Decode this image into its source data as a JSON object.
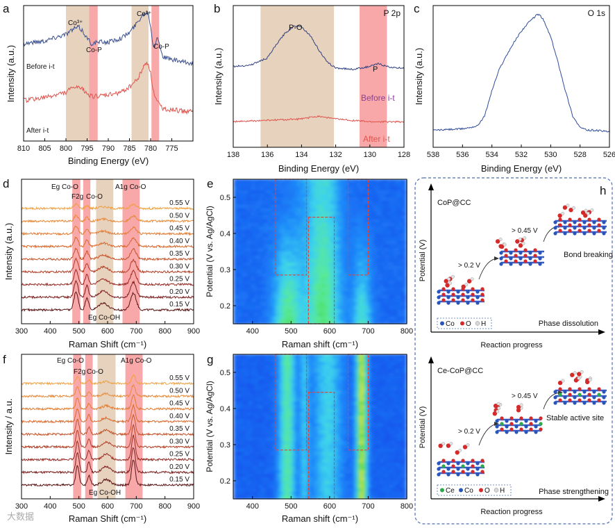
{
  "letters": {
    "a": "a",
    "b": "b",
    "c": "c",
    "d": "d",
    "e": "e",
    "f": "f",
    "g": "g",
    "h": "h"
  },
  "watermark": "大数据",
  "panel_a": {
    "xlabel": "Binding Energy (eV)",
    "ylabel": "Intensity (a.u.)",
    "xlim": [
      810,
      770
    ],
    "xticks": [
      810,
      805,
      800,
      795,
      790,
      785,
      780,
      775
    ],
    "bands": [
      {
        "from": 800,
        "to": 794,
        "color": "#e7d2be"
      },
      {
        "from": 794.5,
        "to": 792.5,
        "color": "#f8a8a8"
      },
      {
        "from": 784.5,
        "to": 780.5,
        "color": "#e7d2be"
      },
      {
        "from": 779.8,
        "to": 778,
        "color": "#f8a8a8"
      }
    ],
    "peak_labels": [
      "Co³⁺",
      "Co-P",
      "Co³⁺",
      "Co-P"
    ],
    "series_labels": [
      "Before i-t",
      "After i-t"
    ],
    "colors": {
      "before": "#3a4f8f",
      "after": "#e0534c"
    }
  },
  "panel_b": {
    "xlabel": "Binding Energy (eV)",
    "ylabel": "Intensity (a.u.)",
    "title": "P 2p",
    "xlim": [
      138,
      128
    ],
    "xticks": [
      138,
      136,
      134,
      132,
      130,
      128
    ],
    "bands": [
      {
        "from": 136.4,
        "to": 132.1,
        "color": "#e7d2be"
      },
      {
        "from": 130.6,
        "to": 129.0,
        "color": "#f8a8a8"
      }
    ],
    "peak_labels": [
      "P-O",
      "P"
    ],
    "series_labels": [
      "Before i-t",
      "After i-t"
    ],
    "series_label_colors": [
      "#8a3f9a",
      "#e0534c"
    ]
  },
  "panel_c": {
    "xlabel": "Binding Energy (eV)",
    "ylabel": "Intensity (a.u.)",
    "title": "O 1s",
    "xlim": [
      538,
      526
    ],
    "xticks": [
      538,
      536,
      534,
      532,
      530,
      528,
      526
    ]
  },
  "panel_d": {
    "xlabel": "Raman Shift (cm⁻¹)",
    "ylabel": "Intensity (a.u.)",
    "xlim": [
      300,
      900
    ],
    "xticks": [
      300,
      400,
      500,
      600,
      700,
      800,
      900
    ],
    "bands": [
      {
        "from": 477,
        "to": 505,
        "color": "#f8a8a8"
      },
      {
        "from": 515,
        "to": 540,
        "color": "#f8a8a8"
      },
      {
        "from": 560,
        "to": 620,
        "color": "#e7d2be"
      },
      {
        "from": 652,
        "to": 712,
        "color": "#f8a8a8"
      }
    ],
    "annotations": [
      "Eg Co-O",
      "F2g",
      "Co-O",
      "A1g Co-O",
      "Eg Co-OH"
    ],
    "potentials": [
      "0.55 V",
      "0.50 V",
      "0.45 V",
      "0.40 V",
      "0.35 V",
      "0.30 V",
      "0.25 V",
      "0.20 V",
      "0.15 V"
    ]
  },
  "panel_f": {
    "xlabel": "Raman Shift (cm⁻¹)",
    "ylabel": "Intensity / a.u.",
    "xlim": [
      300,
      900
    ],
    "xticks": [
      300,
      400,
      500,
      600,
      700,
      800,
      900
    ],
    "bands": [
      {
        "from": 480,
        "to": 508,
        "color": "#f8a8a8"
      },
      {
        "from": 522,
        "to": 548,
        "color": "#f8a8a8"
      },
      {
        "from": 565,
        "to": 628,
        "color": "#e7d2be"
      },
      {
        "from": 662,
        "to": 722,
        "color": "#f8a8a8"
      }
    ],
    "annotations": [
      "Eg Co-O",
      "F2g",
      "Co-O",
      "A1g Co-O",
      "Eg Co-OH"
    ],
    "potentials": [
      "0.55 V",
      "0.50 V",
      "0.45 V",
      "0.40 V",
      "0.35 V",
      "0.30 V",
      "0.25 V",
      "0.20 V",
      "0.15 V"
    ]
  },
  "panel_e": {
    "xlabel": "Raman shift (cm⁻¹)",
    "ylabel": "Potential (V vs. Ag/AgCl)",
    "xlim": [
      350,
      800
    ],
    "ylim": [
      0.15,
      0.55
    ],
    "xticks": [
      400,
      500,
      600,
      700,
      800
    ],
    "yticks": [
      0.2,
      0.3,
      0.4,
      0.5
    ],
    "boxes": [
      {
        "x0": 460,
        "x1": 540,
        "y0": 0.285,
        "y1": 0.55
      },
      {
        "x0": 545,
        "x1": 612,
        "y0": 0.15,
        "y1": 0.445
      },
      {
        "x0": 648,
        "x1": 700,
        "y0": 0.285,
        "y1": 0.55
      }
    ]
  },
  "panel_g": {
    "xlabel": "Raman shift (cm⁻¹)",
    "ylabel": "Potential (V vs. Ag/AgCl)",
    "xlim": [
      350,
      800
    ],
    "ylim": [
      0.15,
      0.55
    ],
    "xticks": [
      400,
      500,
      600,
      700,
      800
    ],
    "yticks": [
      0.2,
      0.3,
      0.4,
      0.5
    ],
    "boxes": [
      {
        "x0": 460,
        "x1": 540,
        "y0": 0.285,
        "y1": 0.55
      },
      {
        "x0": 545,
        "x1": 612,
        "y0": 0.15,
        "y1": 0.445
      },
      {
        "x0": 648,
        "x1": 700,
        "y0": 0.285,
        "y1": 0.55
      }
    ]
  },
  "panel_h": {
    "top": {
      "title": "CoP@CC",
      "ylabel": "Potential (V)",
      "xlabel": "Reaction progress",
      "steps": [
        "> 0.2 V",
        "> 0.45 V"
      ],
      "outcome": "Bond breaking",
      "phase": "Phase dissolution",
      "legend": [
        "Co",
        "O",
        "H"
      ]
    },
    "bottom": {
      "title": "Ce-CoP@CC",
      "ylabel": "Potential (V)",
      "xlabel": "Reaction progress",
      "steps": [
        "> 0.2 V",
        "> 0.45 V"
      ],
      "outcome": "Stable active site",
      "phase": "Phase strengthening",
      "legend": [
        "Ce",
        "Co",
        "O",
        "H"
      ]
    }
  },
  "chart_data": [
    {
      "type": "line",
      "panel": "a",
      "title": "",
      "xlabel": "Binding Energy (eV)",
      "ylabel": "Intensity (a.u.)",
      "xlim": [
        810,
        770
      ],
      "series": [
        {
          "name": "Before i-t",
          "x": [
            810,
            805,
            800,
            798,
            797,
            796,
            795,
            794,
            792,
            790,
            787,
            785,
            783,
            782,
            781,
            780.5,
            780,
            779.5,
            779,
            778.5,
            778,
            777,
            775,
            772,
            770
          ],
          "y": [
            0.72,
            0.74,
            0.79,
            0.83,
            0.84,
            0.81,
            0.76,
            0.72,
            0.73,
            0.73,
            0.76,
            0.8,
            0.88,
            0.93,
            0.95,
            0.94,
            0.85,
            0.72,
            0.7,
            0.78,
            0.72,
            0.62,
            0.6,
            0.58,
            0.57
          ]
        },
        {
          "name": "After i-t",
          "x": [
            810,
            805,
            800,
            798,
            796,
            794,
            792,
            790,
            787,
            785,
            783,
            782,
            781,
            780.5,
            780,
            779.5,
            779,
            778,
            777,
            775,
            772,
            770
          ],
          "y": [
            0.3,
            0.32,
            0.36,
            0.4,
            0.38,
            0.33,
            0.33,
            0.34,
            0.36,
            0.4,
            0.46,
            0.53,
            0.58,
            0.57,
            0.5,
            0.4,
            0.32,
            0.27,
            0.24,
            0.23,
            0.22,
            0.22
          ]
        }
      ]
    },
    {
      "type": "line",
      "panel": "b",
      "title": "P 2p",
      "xlabel": "Binding Energy (eV)",
      "ylabel": "Intensity (a.u.)",
      "xlim": [
        138,
        128
      ],
      "series": [
        {
          "name": "Before i-t",
          "x": [
            138,
            137,
            136,
            135.5,
            135,
            134.5,
            134.2,
            134,
            133.5,
            133,
            132.5,
            132,
            131,
            130,
            129.5,
            129,
            128.5,
            128
          ],
          "y": [
            0.57,
            0.58,
            0.63,
            0.72,
            0.8,
            0.85,
            0.86,
            0.85,
            0.79,
            0.69,
            0.6,
            0.56,
            0.55,
            0.57,
            0.59,
            0.57,
            0.56,
            0.56
          ]
        },
        {
          "name": "After i-t",
          "x": [
            138,
            136,
            134,
            133,
            132,
            130,
            128
          ],
          "y": [
            0.18,
            0.19,
            0.2,
            0.22,
            0.2,
            0.18,
            0.18
          ]
        }
      ]
    },
    {
      "type": "line",
      "panel": "c",
      "title": "O 1s",
      "xlabel": "Binding Energy (eV)",
      "ylabel": "Intensity (a.u.)",
      "xlim": [
        538,
        526
      ],
      "series": [
        {
          "name": "",
          "x": [
            538,
            536,
            535,
            534.5,
            534,
            533.5,
            533,
            532.5,
            532,
            531.5,
            531,
            530.8,
            530.5,
            530,
            529.5,
            529,
            528.5,
            528,
            527.5,
            527,
            526
          ],
          "y": [
            0.12,
            0.13,
            0.15,
            0.22,
            0.4,
            0.55,
            0.65,
            0.74,
            0.82,
            0.88,
            0.93,
            0.94,
            0.9,
            0.78,
            0.6,
            0.4,
            0.22,
            0.14,
            0.12,
            0.12,
            0.11
          ]
        }
      ]
    },
    {
      "type": "line",
      "panel": "d",
      "xlabel": "Raman Shift (cm⁻¹)",
      "ylabel": "Intensity (a.u.)",
      "xlim": [
        300,
        900
      ],
      "peaks_cm1": [
        490,
        528,
        585,
        690
      ],
      "series_names": [
        "0.55 V",
        "0.50 V",
        "0.45 V",
        "0.40 V",
        "0.35 V",
        "0.30 V",
        "0.25 V",
        "0.20 V",
        "0.15 V"
      ],
      "peak_height_scale": [
        0.25,
        0.3,
        0.4,
        0.5,
        0.6,
        0.7,
        0.8,
        0.9,
        1.0
      ]
    },
    {
      "type": "line",
      "panel": "f",
      "xlabel": "Raman Shift (cm⁻¹)",
      "ylabel": "Intensity / a.u.",
      "xlim": [
        300,
        900
      ],
      "peaks_cm1": [
        495,
        535,
        595,
        690
      ],
      "series_names": [
        "0.55 V",
        "0.50 V",
        "0.45 V",
        "0.40 V",
        "0.35 V",
        "0.30 V",
        "0.25 V",
        "0.20 V",
        "0.15 V"
      ],
      "peak_height_scale": [
        0.35,
        0.45,
        0.55,
        0.65,
        0.75,
        0.85,
        0.95,
        1.0,
        1.0
      ]
    },
    {
      "type": "heatmap",
      "panel": "e",
      "xlabel": "Raman shift (cm⁻¹)",
      "ylabel": "Potential (V vs. Ag/AgCl)",
      "xlim": [
        350,
        800
      ],
      "ylim": [
        0.15,
        0.55
      ]
    },
    {
      "type": "heatmap",
      "panel": "g",
      "xlabel": "Raman shift (cm⁻¹)",
      "ylabel": "Potential (V vs. Ag/AgCl)",
      "xlim": [
        350,
        800
      ],
      "ylim": [
        0.15,
        0.55
      ]
    }
  ]
}
